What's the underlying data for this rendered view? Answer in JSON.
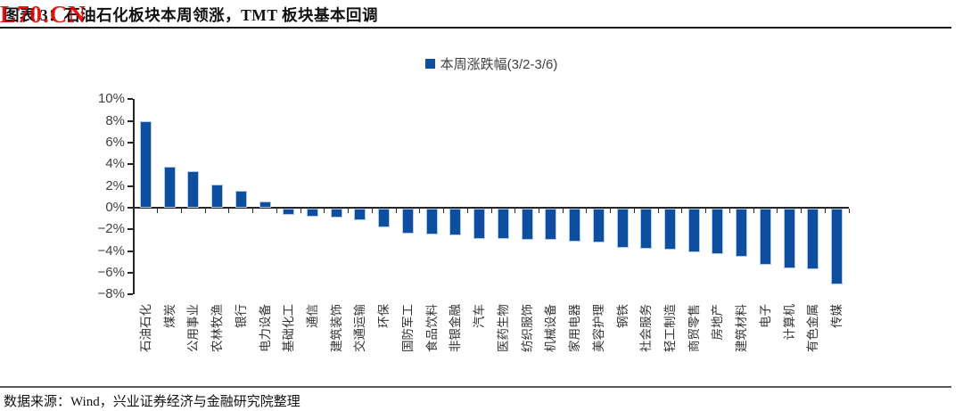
{
  "watermark": {
    "text": "L70.CN",
    "color": "#dd0000"
  },
  "header": {
    "title": "图表 3：石油石化板块本周领涨，TMT 板块基本回调"
  },
  "chart_data": {
    "type": "bar",
    "title": "",
    "legend": [
      {
        "label": "本周涨跌幅(3/2-3/6)",
        "color": "#0d4e9e"
      }
    ],
    "legend_position": "top-center",
    "bar_color": "#0d4e9e",
    "bar_border_color": "#aec9e8",
    "grid": false,
    "ylim": [
      -8,
      10
    ],
    "ytick_step": 2,
    "yticks": [
      {
        "value": 10,
        "label": "10%"
      },
      {
        "value": 8,
        "label": "8%"
      },
      {
        "value": 6,
        "label": "6%"
      },
      {
        "value": 4,
        "label": "4%"
      },
      {
        "value": 2,
        "label": "2%"
      },
      {
        "value": 0,
        "label": "0%"
      },
      {
        "value": -2,
        "label": "−2%"
      },
      {
        "value": -4,
        "label": "−4%"
      },
      {
        "value": -6,
        "label": "−6%"
      },
      {
        "value": -8,
        "label": "−8%"
      }
    ],
    "xlabel": "",
    "ylabel": "",
    "categories": [
      "石油石化",
      "煤炭",
      "公用事业",
      "农林牧渔",
      "银行",
      "电力设备",
      "基础化工",
      "通信",
      "建筑装饰",
      "交通运输",
      "环保",
      "国防军工",
      "食品饮料",
      "非银金融",
      "汽车",
      "医药生物",
      "纺织服饰",
      "机械设备",
      "家用电器",
      "美容护理",
      "钢铁",
      "社会服务",
      "轻工制造",
      "商贸零售",
      "房地产",
      "建筑材料",
      "电子",
      "计算机",
      "有色金属",
      "传媒"
    ],
    "values": [
      8.0,
      3.8,
      3.4,
      2.1,
      1.6,
      0.6,
      -0.6,
      -0.7,
      -0.8,
      -1.1,
      -1.7,
      -2.3,
      -2.4,
      -2.5,
      -2.8,
      -2.8,
      -2.9,
      -2.9,
      -3.0,
      -3.1,
      -3.6,
      -3.7,
      -3.8,
      -4.0,
      -4.2,
      -4.4,
      -5.2,
      -5.5,
      -5.6,
      -7.0
    ]
  },
  "footer": {
    "source": "数据来源：Wind，兴业证券经济与金融研究院整理"
  }
}
